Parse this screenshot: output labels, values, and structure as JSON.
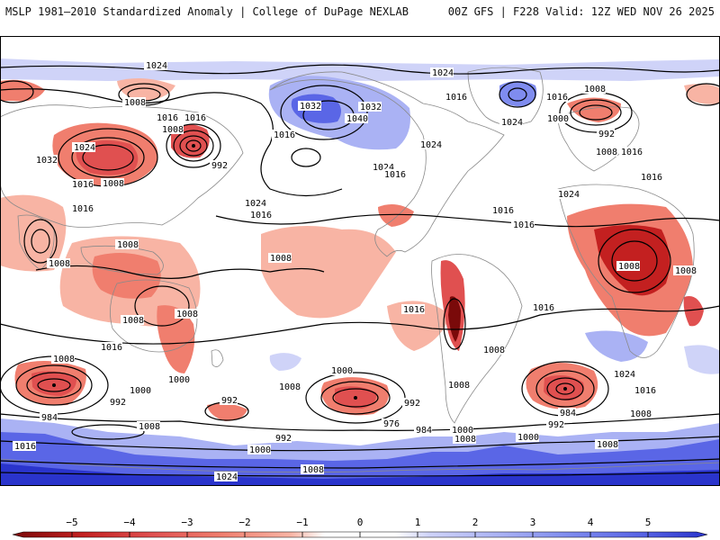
{
  "header": {
    "title": "MSLP 1981–2010 Standardized Anomaly | College of DuPage NEXLAB",
    "run_info": "00Z GFS | F228 Valid: 12Z WED NOV 26 2025"
  },
  "colors": {
    "neg5": "#7a0a0a",
    "neg4": "#c32020",
    "neg3": "#e05050",
    "neg2": "#f07e6e",
    "neg1": "#f8b4a4",
    "zero": "#ffffff",
    "pos1": "#cfd3f8",
    "pos2": "#aab2f4",
    "pos3": "#7f8cef",
    "pos4": "#5a66e6",
    "pos5": "#2a34cc",
    "land": "#ffffff",
    "coast": "#8a8a8a",
    "isobar": "#000000"
  },
  "isobar_labels": {
    "l1024a": "1024",
    "l1024b": "1024",
    "l1024c": "1024",
    "l1024d": "1024",
    "l1024e": "1024",
    "l1024f": "1024",
    "l1024g": "1024",
    "l1024h": "1024",
    "l1024i": "1024",
    "l1024j": "1024",
    "l1032a": "1032",
    "l1032b": "1032",
    "l1032c": "1032",
    "l1040a": "1040",
    "l1016a": "1016",
    "l1016b": "1016",
    "l1016c": "1016",
    "l1016d": "1016",
    "l1016e": "1016",
    "l1016f": "1016",
    "l1016g": "1016",
    "l1016h": "1016",
    "l1016i": "1016",
    "l1016j": "1016",
    "l1016k": "1016",
    "l1016l": "1016",
    "l1016m": "1016",
    "l1016n": "1016",
    "l1016o": "1016",
    "l1016p": "1016",
    "l1016q": "1016",
    "l1016r": "1016",
    "l1008a": "1008",
    "l1008b": "1008",
    "l1008c": "1008",
    "l1008d": "1008",
    "l1008e": "1008",
    "l1008f": "1008",
    "l1008g": "1008",
    "l1008h": "1008",
    "l1008i": "1008",
    "l1008j": "1008",
    "l1008k": "1008",
    "l1008l": "1008",
    "l1008m": "1008",
    "l1008n": "1008",
    "l1008o": "1008",
    "l1008p": "1008",
    "l1008q": "1008",
    "l1008r": "1008",
    "l1008s": "1008",
    "l1008t": "1008",
    "l1008u": "1008",
    "l1000a": "1000",
    "l1000b": "1000",
    "l1000c": "1000",
    "l1000d": "1000",
    "l1000e": "1000",
    "l1000f": "1000",
    "l1000g": "1000",
    "l992a": "992",
    "l992b": "992",
    "l992c": "992",
    "l992d": "992",
    "l992e": "992",
    "l992f": "992",
    "l992g": "992",
    "l984a": "984",
    "l984b": "984",
    "l984c": "984",
    "l976a": "976"
  },
  "colorbar": {
    "ticks": [
      "−5",
      "−4",
      "−3",
      "−2",
      "−1",
      "0",
      "1",
      "2",
      "3",
      "4",
      "5"
    ]
  }
}
